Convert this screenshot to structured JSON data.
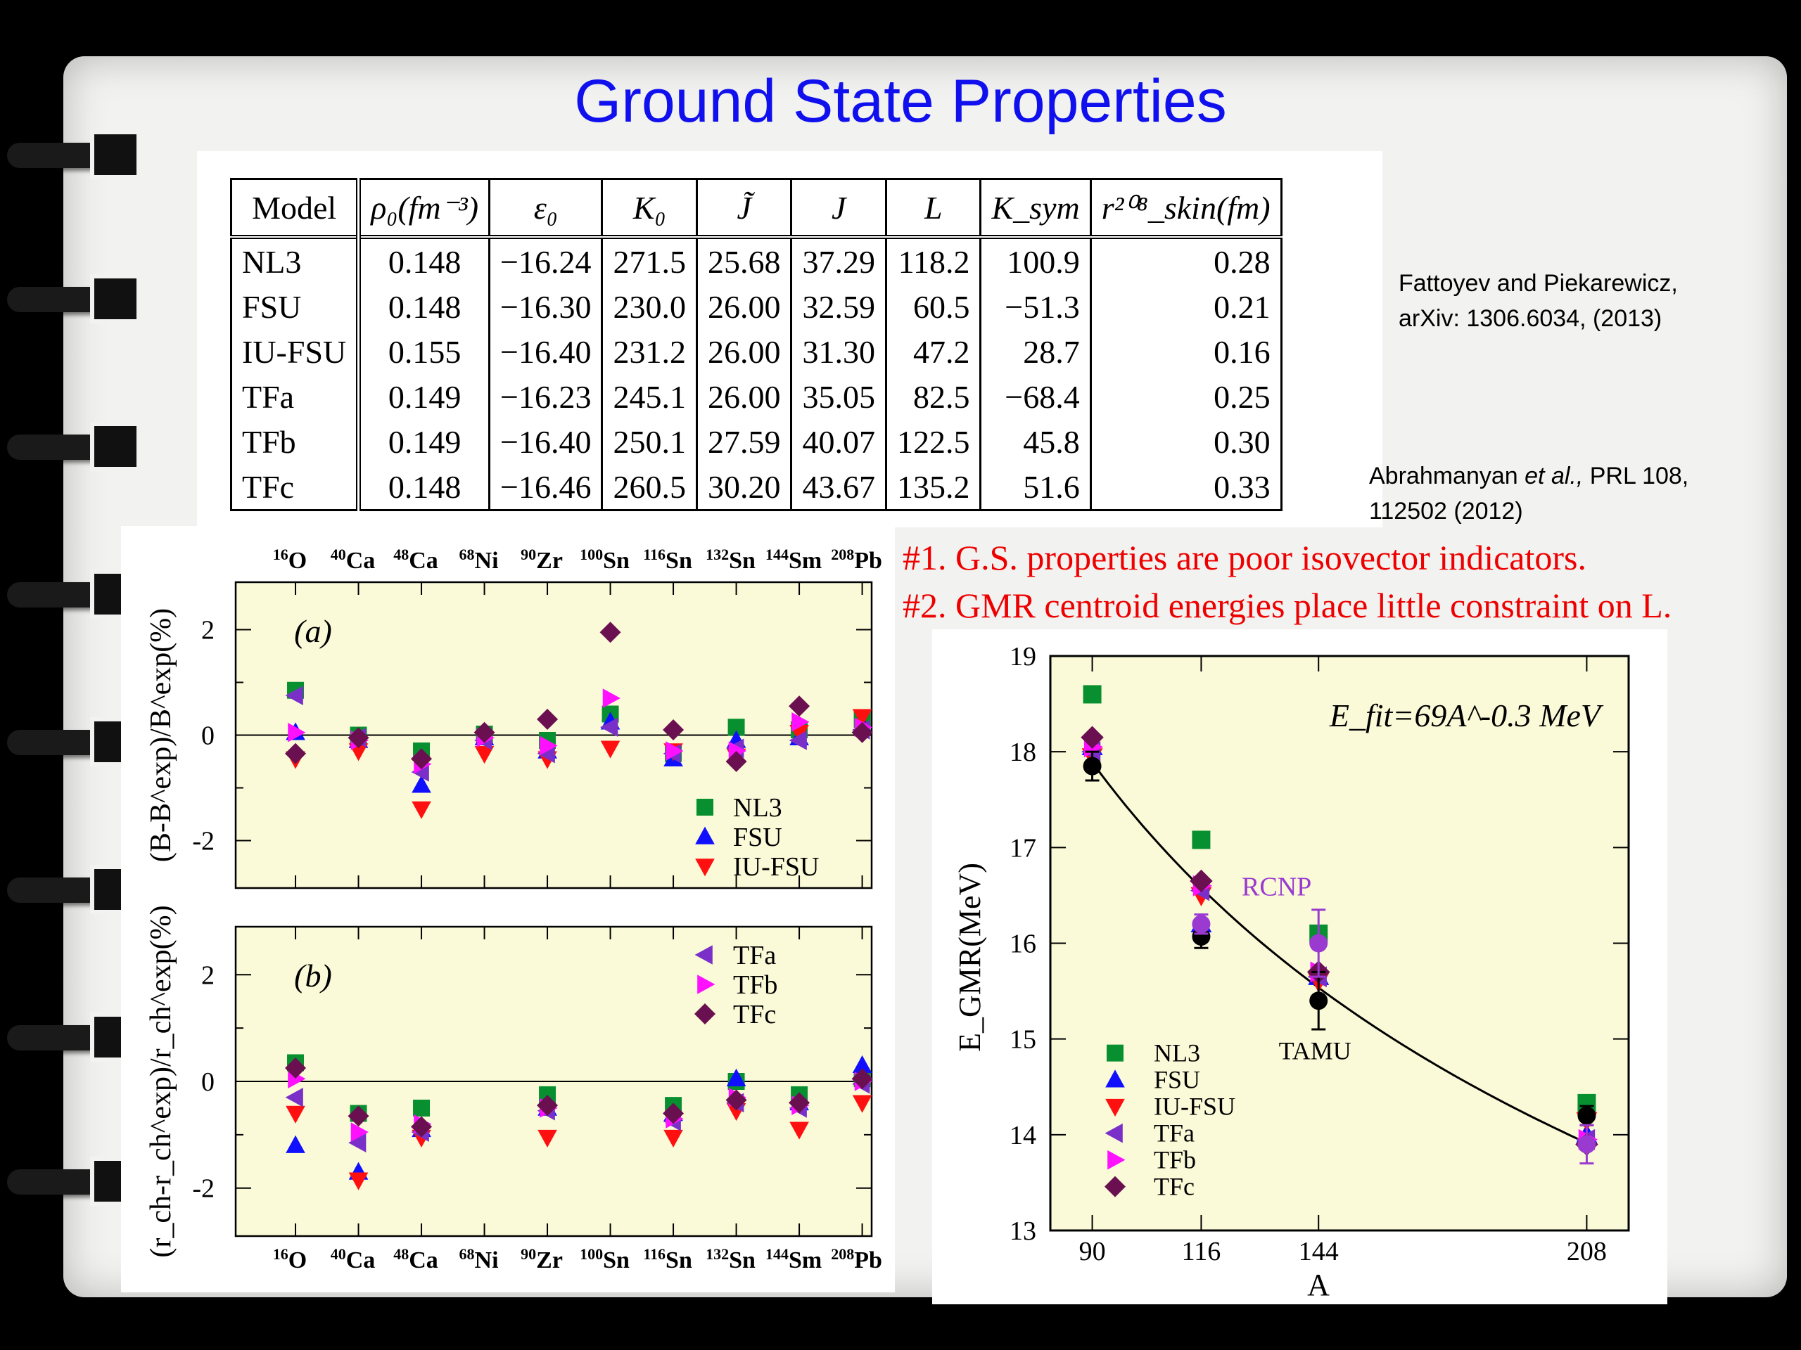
{
  "title": "Ground State Properties",
  "table": {
    "headers": [
      "Model",
      "ρ₀(fm⁻³)",
      "ε₀",
      "K₀",
      "J̃",
      "J",
      "L",
      "K_sym",
      "r²⁰⁸_skin(fm)"
    ],
    "rows": [
      [
        "NL3",
        "0.148",
        "−16.24",
        "271.5",
        "25.68",
        "37.29",
        "118.2",
        "100.9",
        "0.28"
      ],
      [
        "FSU",
        "0.148",
        "−16.30",
        "230.0",
        "26.00",
        "32.59",
        "60.5",
        "−51.3",
        "0.21"
      ],
      [
        "IU-FSU",
        "0.155",
        "−16.40",
        "231.2",
        "26.00",
        "31.30",
        "47.2",
        "28.7",
        "0.16"
      ],
      [
        "TFa",
        "0.149",
        "−16.23",
        "245.1",
        "26.00",
        "35.05",
        "82.5",
        "−68.4",
        "0.25"
      ],
      [
        "TFb",
        "0.149",
        "−16.40",
        "250.1",
        "27.59",
        "40.07",
        "122.5",
        "45.8",
        "0.30"
      ],
      [
        "TFc",
        "0.148",
        "−16.46",
        "260.5",
        "30.20",
        "43.67",
        "135.2",
        "51.6",
        "0.33"
      ]
    ]
  },
  "refs": {
    "ref1_line1": "Fattoyev and Piekarewicz,",
    "ref1_line2": "arXiv:  1306.6034, (2013)",
    "ref2_line1_a": "Abrahmanyan ",
    "ref2_line1_b": "et al.,",
    "ref2_line1_c": " PRL 108,",
    "ref2_line2": "112502 (2012)"
  },
  "notes": {
    "note1": "#1. G.S. properties are poor isovector indicators.",
    "note2": "#2. GMR centroid energies place little constraint on L."
  },
  "colors": {
    "title": "#1010ee",
    "note": "#ee0000",
    "NL3": "#089030",
    "FSU": "#1010ff",
    "IU-FSU": "#ff1010",
    "TFa": "#7a30c8",
    "TFb": "#ff10ff",
    "TFc": "#6a1050",
    "plot_bg": "#fafad8"
  },
  "chart_data": [
    {
      "type": "scatter",
      "panel_label": "(a)",
      "ylabel": "(B-B^exp)/B^exp(%)",
      "categories": [
        "16O",
        "40Ca",
        "48Ca",
        "68Ni",
        "90Zr",
        "100Sn",
        "116Sn",
        "132Sn",
        "144Sm",
        "208Pb"
      ],
      "ylim": [
        -2.9,
        2.9
      ],
      "yticks": [
        -2,
        0,
        2
      ],
      "legend_position": "bottom-right",
      "series": [
        {
          "name": "NL3",
          "marker": "square",
          "values": [
            0.85,
            0.0,
            -0.3,
            0.02,
            -0.1,
            0.4,
            -0.35,
            0.15,
            0.1,
            0.3
          ]
        },
        {
          "name": "FSU",
          "marker": "triangle-up",
          "values": [
            0.05,
            -0.1,
            -0.95,
            -0.05,
            -0.3,
            0.25,
            -0.45,
            -0.1,
            -0.05,
            0.2
          ]
        },
        {
          "name": "IU-FSU",
          "marker": "triangle-down",
          "values": [
            -0.45,
            -0.3,
            -1.4,
            -0.35,
            -0.45,
            -0.25,
            -0.3,
            -0.4,
            0.05,
            0.35
          ]
        },
        {
          "name": "TFa",
          "marker": "triangle-left",
          "values": [
            0.75,
            -0.05,
            -0.7,
            -0.1,
            -0.35,
            0.15,
            -0.35,
            -0.25,
            -0.1,
            0.1
          ]
        },
        {
          "name": "TFb",
          "marker": "triangle-right",
          "values": [
            0.05,
            -0.1,
            -0.55,
            -0.05,
            -0.2,
            0.7,
            -0.3,
            -0.3,
            0.25,
            0.15
          ]
        },
        {
          "name": "TFc",
          "marker": "diamond",
          "values": [
            -0.35,
            -0.05,
            -0.45,
            0.05,
            0.3,
            1.95,
            0.1,
            -0.5,
            0.55,
            0.05
          ]
        }
      ],
      "xlabels_top": true
    },
    {
      "type": "scatter",
      "panel_label": "(b)",
      "ylabel": "(r_ch-r_ch^exp)/r_ch^exp(%)",
      "categories": [
        "16O",
        "40Ca",
        "48Ca",
        "68Ni",
        "90Zr",
        "100Sn",
        "116Sn",
        "132Sn",
        "144Sm",
        "208Pb"
      ],
      "ylim": [
        -2.9,
        2.9
      ],
      "yticks": [
        -2,
        0,
        2
      ],
      "legend_position": "top-right",
      "series": [
        {
          "name": "NL3",
          "marker": "square",
          "values": [
            0.35,
            -0.6,
            -0.5,
            null,
            -0.25,
            null,
            -0.45,
            0.0,
            -0.25,
            0.05
          ]
        },
        {
          "name": "FSU",
          "marker": "triangle-up",
          "values": [
            -1.2,
            -1.7,
            -0.9,
            null,
            -0.5,
            null,
            -0.6,
            0.05,
            -0.4,
            0.3
          ]
        },
        {
          "name": "IU-FSU",
          "marker": "triangle-down",
          "values": [
            -0.6,
            -1.85,
            -1.05,
            null,
            -1.05,
            null,
            -1.05,
            -0.55,
            -0.9,
            -0.4
          ]
        },
        {
          "name": "TFa",
          "marker": "triangle-left",
          "values": [
            -0.3,
            -1.15,
            -0.95,
            null,
            -0.55,
            null,
            -0.75,
            -0.4,
            -0.5,
            -0.05
          ]
        },
        {
          "name": "TFb",
          "marker": "triangle-right",
          "values": [
            0.05,
            -0.95,
            -0.8,
            null,
            -0.5,
            null,
            -0.7,
            -0.3,
            -0.45,
            0.0
          ]
        },
        {
          "name": "TFc",
          "marker": "diamond",
          "values": [
            0.25,
            -0.65,
            -0.85,
            null,
            -0.45,
            null,
            -0.6,
            -0.35,
            -0.4,
            0.05
          ]
        }
      ],
      "xlabels_bottom": true
    },
    {
      "type": "scatter",
      "xlabel": "A",
      "ylabel": "E_GMR(MeV)",
      "xlim": [
        80,
        218
      ],
      "ylim": [
        13,
        19
      ],
      "xticks": [
        90,
        116,
        144,
        208
      ],
      "yticks": [
        13,
        14,
        15,
        16,
        17,
        18,
        19
      ],
      "fit_label": "E_fit=69A^-0.3 MeV",
      "fit": {
        "coefficient": 69,
        "exponent": -0.3
      },
      "legend_position": "bottom-left",
      "series": [
        {
          "name": "NL3",
          "marker": "square",
          "x": [
            90,
            116,
            144,
            208
          ],
          "y": [
            18.6,
            17.08,
            16.1,
            14.33
          ]
        },
        {
          "name": "FSU",
          "marker": "triangle-up",
          "x": [
            90,
            116,
            144,
            208
          ],
          "y": [
            18.05,
            16.2,
            15.65,
            14.0
          ]
        },
        {
          "name": "IU-FSU",
          "marker": "triangle-down",
          "x": [
            90,
            116,
            144,
            208
          ],
          "y": [
            17.95,
            16.5,
            15.6,
            14.15
          ]
        },
        {
          "name": "TFa",
          "marker": "triangle-left",
          "x": [
            90,
            116,
            144,
            208
          ],
          "y": [
            18.0,
            16.55,
            15.65,
            13.95
          ]
        },
        {
          "name": "TFb",
          "marker": "triangle-right",
          "x": [
            90,
            116,
            144,
            208
          ],
          "y": [
            18.05,
            16.6,
            15.7,
            13.95
          ]
        },
        {
          "name": "TFc",
          "marker": "diamond",
          "x": [
            90,
            116,
            144,
            208
          ],
          "y": [
            18.15,
            16.65,
            15.7,
            13.9
          ]
        }
      ],
      "experiments": [
        {
          "name": "TAMU",
          "color": "#000000",
          "points": [
            {
              "x": 90,
              "y": 17.85,
              "err": 0.15
            },
            {
              "x": 116,
              "y": 16.07,
              "err": 0.12
            },
            {
              "x": 144,
              "y": 15.4,
              "err": 0.3
            },
            {
              "x": 208,
              "y": 14.2,
              "err": 0.1
            }
          ]
        },
        {
          "name": "RCNP",
          "color": "#9a3ad0",
          "points": [
            {
              "x": 116,
              "y": 16.2,
              "err": 0.1
            },
            {
              "x": 144,
              "y": 16.0,
              "err": 0.35
            },
            {
              "x": 208,
              "y": 13.9,
              "err": 0.2
            }
          ]
        }
      ]
    }
  ]
}
